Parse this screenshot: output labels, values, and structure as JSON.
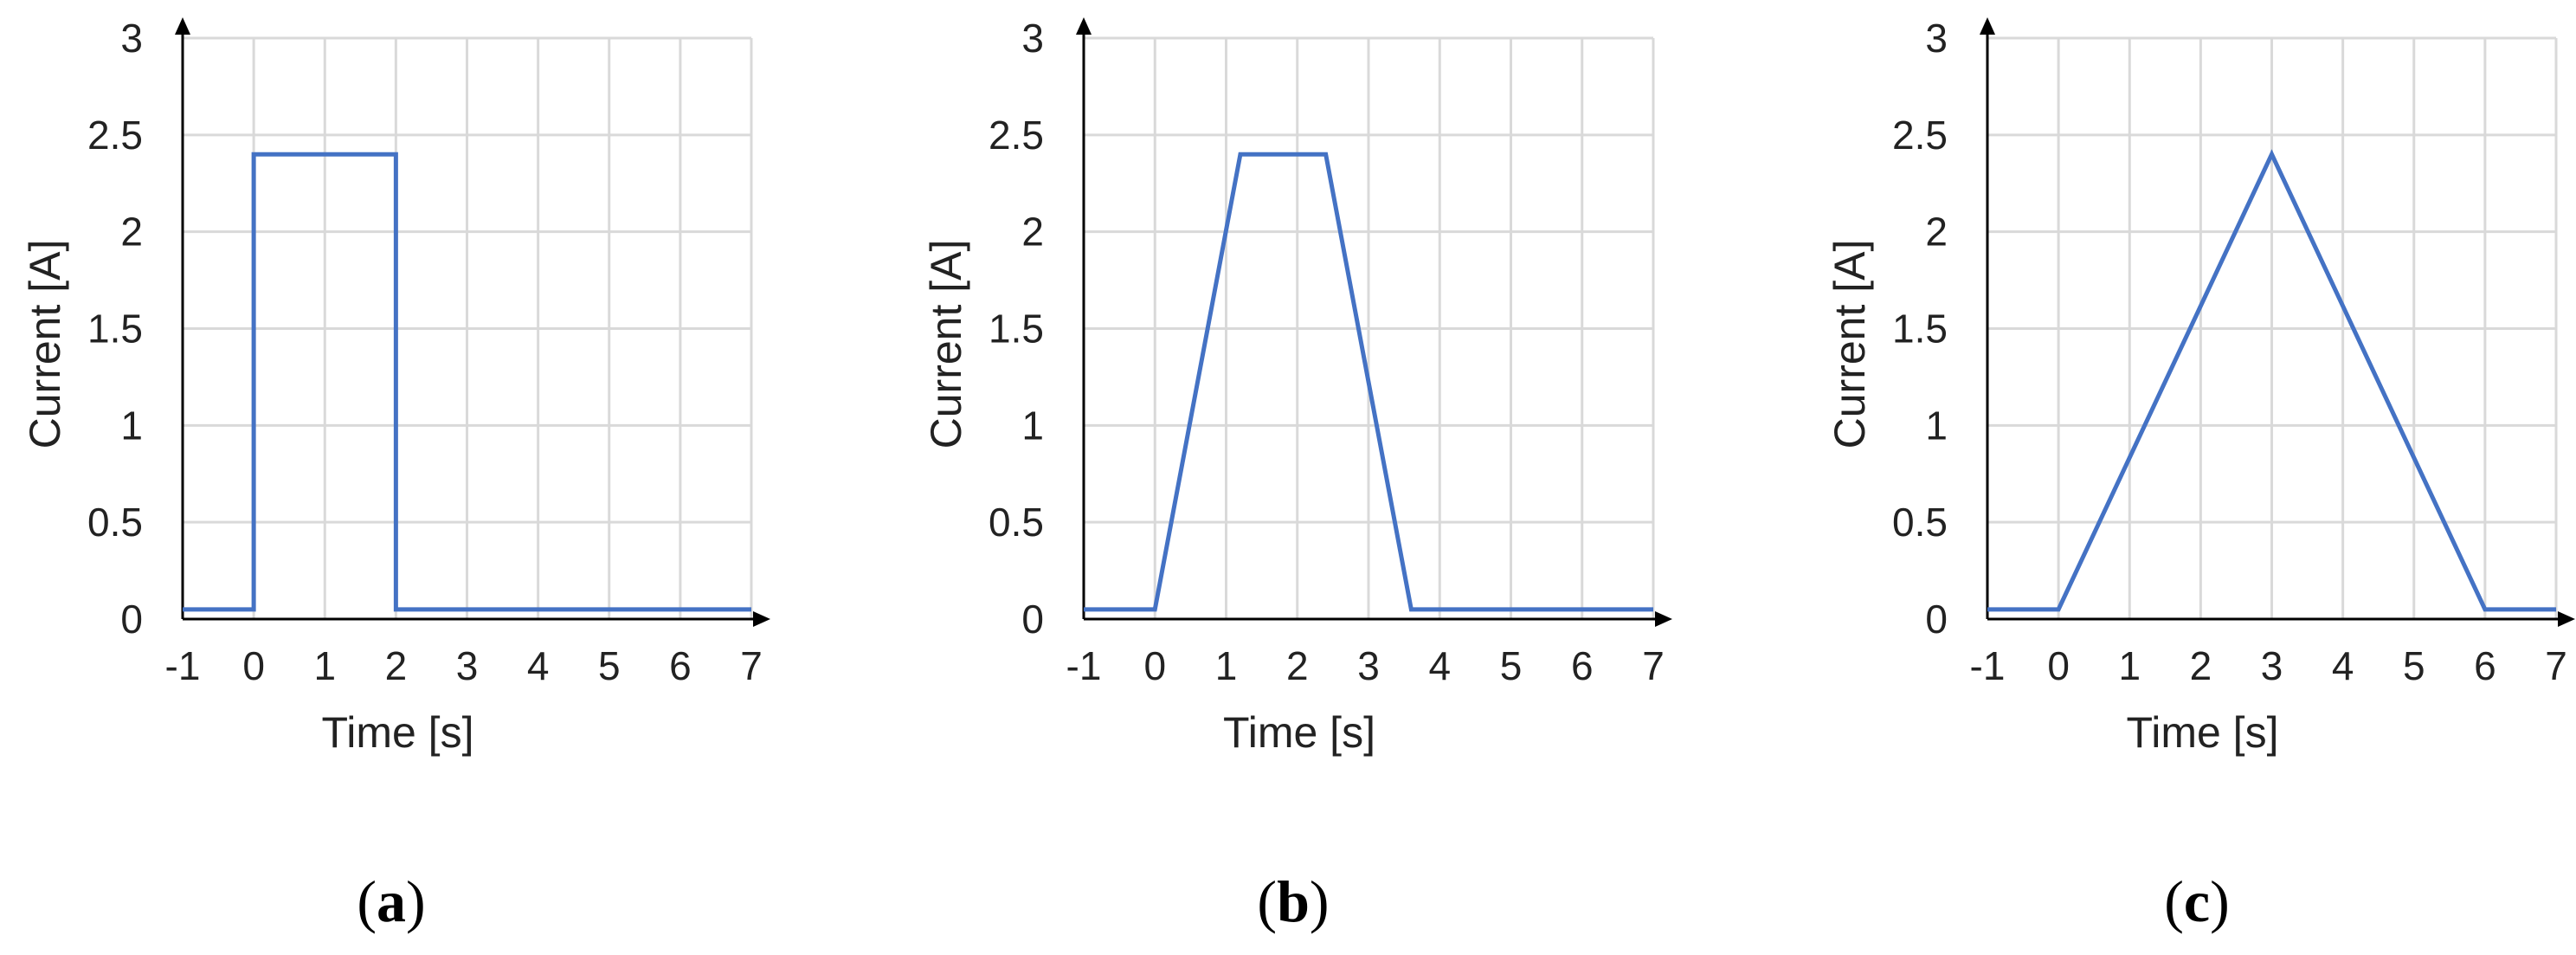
{
  "chart_data": [
    {
      "type": "line",
      "caption_letter": "a",
      "xlabel": "Time [s]",
      "ylabel": "Current [A]",
      "xlim": [
        -1,
        7
      ],
      "ylim": [
        0,
        3
      ],
      "x_ticks": [
        "-1",
        "0",
        "1",
        "2",
        "3",
        "4",
        "5",
        "6",
        "7"
      ],
      "y_ticks": [
        "0",
        "0.5",
        "1",
        "1.5",
        "2",
        "2.5",
        "3"
      ],
      "grid": true,
      "legend": "none",
      "color": "#4472c4",
      "x": [
        -1,
        0,
        0,
        2,
        2,
        7
      ],
      "y": [
        0.05,
        0.05,
        2.4,
        2.4,
        0.05,
        0.05
      ]
    },
    {
      "type": "line",
      "caption_letter": "b",
      "xlabel": "Time [s]",
      "ylabel": "Current [A]",
      "xlim": [
        -1,
        7
      ],
      "ylim": [
        0,
        3
      ],
      "x_ticks": [
        "-1",
        "0",
        "1",
        "2",
        "3",
        "4",
        "5",
        "6",
        "7"
      ],
      "y_ticks": [
        "0",
        "0.5",
        "1",
        "1.5",
        "2",
        "2.5",
        "3"
      ],
      "grid": true,
      "legend": "none",
      "color": "#4472c4",
      "x": [
        -1,
        0,
        1.2,
        2.4,
        3.6,
        7
      ],
      "y": [
        0.05,
        0.05,
        2.4,
        2.4,
        0.05,
        0.05
      ]
    },
    {
      "type": "line",
      "caption_letter": "c",
      "xlabel": "Time [s]",
      "ylabel": "Current [A]",
      "xlim": [
        -1,
        7
      ],
      "ylim": [
        0,
        3
      ],
      "x_ticks": [
        "-1",
        "0",
        "1",
        "2",
        "3",
        "4",
        "5",
        "6",
        "7"
      ],
      "y_ticks": [
        "0",
        "0.5",
        "1",
        "1.5",
        "2",
        "2.5",
        "3"
      ],
      "grid": true,
      "legend": "none",
      "color": "#4472c4",
      "x": [
        -1,
        0,
        3,
        6,
        7
      ],
      "y": [
        0.05,
        0.05,
        2.4,
        0.05,
        0.05
      ]
    }
  ]
}
